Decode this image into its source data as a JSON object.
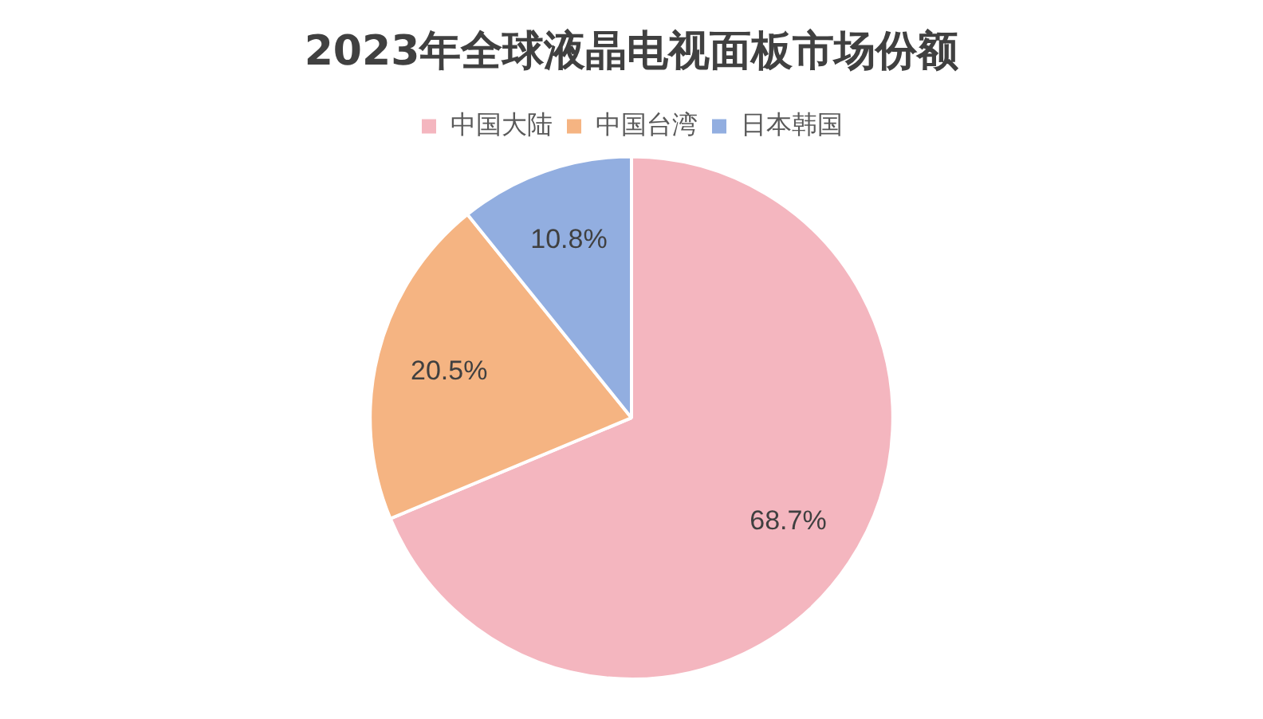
{
  "chart_data": {
    "type": "pie",
    "title": "2023年全球液晶电视面板市场份额",
    "categories": [
      "中国大陆",
      "中国台湾",
      "日本韩国"
    ],
    "values": [
      68.7,
      20.5,
      10.8
    ],
    "value_labels": [
      "68.7%",
      "20.5%",
      "10.8%"
    ],
    "colors": [
      "#f4b6bf",
      "#f5b482",
      "#92aee0"
    ],
    "legend": "top"
  }
}
